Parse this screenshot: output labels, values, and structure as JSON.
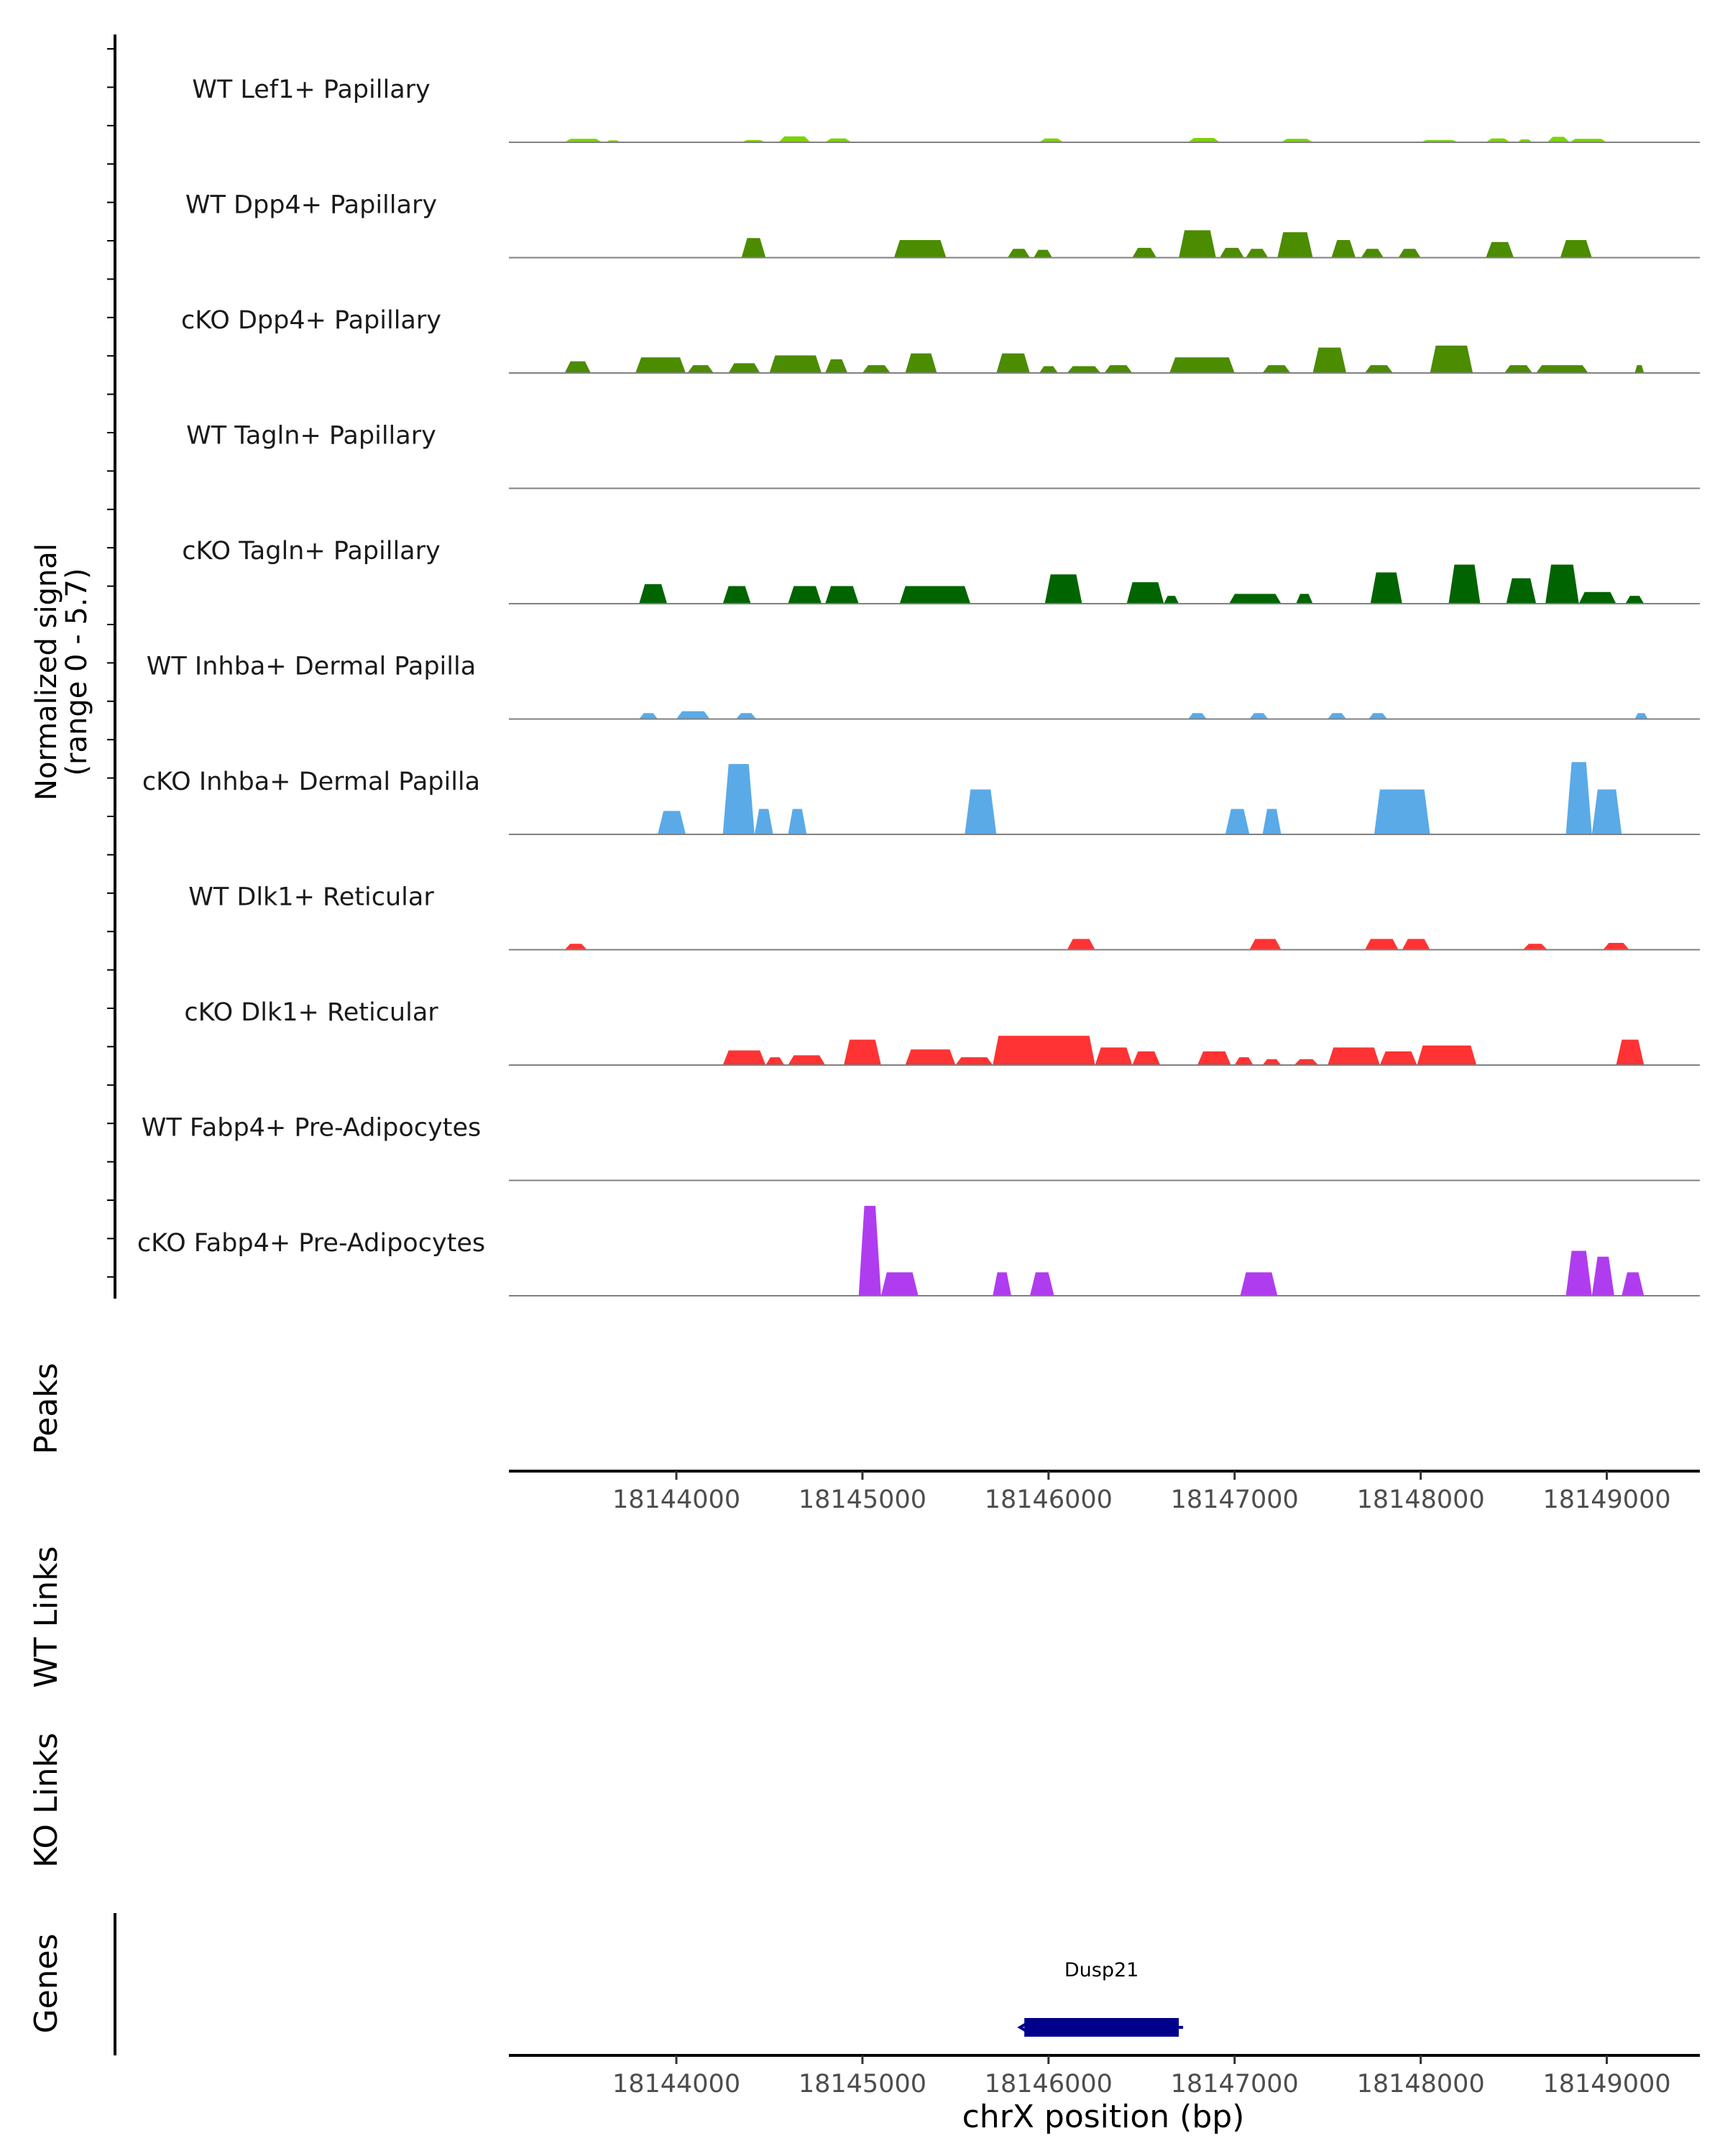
{
  "chart_data": {
    "type": "area",
    "title": "",
    "xlabel": "chrX position (bp)",
    "ylabel_main": "Normalized signal",
    "ylabel_sub": "(range 0 - 5.7)",
    "ylim": [
      0,
      5.7
    ],
    "xlim": [
      18143100,
      18149500
    ],
    "xticks": [
      18144000,
      18145000,
      18146000,
      18147000,
      18148000,
      18149000
    ],
    "xtick_labels": [
      "18144000",
      "18145000",
      "18146000",
      "18147000",
      "18148000",
      "18149000"
    ],
    "panel_labels": {
      "peaks": "Peaks",
      "wt_links": "WT Links",
      "ko_links": "KO Links",
      "genes": "Genes"
    },
    "tracks": [
      {
        "name": "WT Lef1+ Papillary",
        "color": "#7dd20a",
        "peaks": [
          [
            18143400,
            18143600,
            0.18
          ],
          [
            18143620,
            18143700,
            0.1
          ],
          [
            18144350,
            18144480,
            0.12
          ],
          [
            18144550,
            18144720,
            0.3
          ],
          [
            18144800,
            18144940,
            0.2
          ],
          [
            18145950,
            18146080,
            0.2
          ],
          [
            18146750,
            18146920,
            0.22
          ],
          [
            18147250,
            18147420,
            0.18
          ],
          [
            18148000,
            18148200,
            0.12
          ],
          [
            18148350,
            18148480,
            0.2
          ],
          [
            18148520,
            18148600,
            0.15
          ],
          [
            18148680,
            18148800,
            0.28
          ],
          [
            18148800,
            18149000,
            0.18
          ]
        ]
      },
      {
        "name": "WT Dpp4+ Papillary",
        "color": "#4b8c00",
        "peaks": [
          [
            18144350,
            18144480,
            1.0
          ],
          [
            18145170,
            18145450,
            0.9
          ],
          [
            18145780,
            18145900,
            0.45
          ],
          [
            18145920,
            18146020,
            0.4
          ],
          [
            18146450,
            18146580,
            0.5
          ],
          [
            18146700,
            18146900,
            1.4
          ],
          [
            18146920,
            18147050,
            0.5
          ],
          [
            18147060,
            18147180,
            0.45
          ],
          [
            18147230,
            18147420,
            1.3
          ],
          [
            18147520,
            18147650,
            0.9
          ],
          [
            18147680,
            18147800,
            0.45
          ],
          [
            18147880,
            18148000,
            0.45
          ],
          [
            18148350,
            18148500,
            0.8
          ],
          [
            18148750,
            18148920,
            0.9
          ]
        ]
      },
      {
        "name": "cKO Dpp4+ Papillary",
        "color": "#4b8c00",
        "peaks": [
          [
            18143400,
            18143540,
            0.6
          ],
          [
            18143780,
            18144050,
            0.8
          ],
          [
            18144060,
            18144200,
            0.4
          ],
          [
            18144280,
            18144450,
            0.5
          ],
          [
            18144500,
            18144780,
            0.9
          ],
          [
            18144800,
            18144920,
            0.7
          ],
          [
            18145000,
            18145150,
            0.4
          ],
          [
            18145230,
            18145400,
            1.0
          ],
          [
            18145720,
            18145900,
            1.0
          ],
          [
            18145950,
            18146050,
            0.35
          ],
          [
            18146100,
            18146280,
            0.35
          ],
          [
            18146300,
            18146450,
            0.4
          ],
          [
            18146650,
            18147000,
            0.8
          ],
          [
            18147150,
            18147300,
            0.4
          ],
          [
            18147420,
            18147600,
            1.3
          ],
          [
            18147700,
            18147850,
            0.4
          ],
          [
            18148050,
            18148280,
            1.4
          ],
          [
            18148450,
            18148600,
            0.4
          ],
          [
            18148620,
            18148900,
            0.4
          ],
          [
            18149150,
            18149200,
            0.4
          ]
        ]
      },
      {
        "name": "WT Tagln+ Papillary",
        "color": "#006400",
        "peaks": []
      },
      {
        "name": "cKO Tagln+ Papillary",
        "color": "#006400",
        "peaks": [
          [
            18143800,
            18143950,
            1.0
          ],
          [
            18144250,
            18144400,
            0.9
          ],
          [
            18144600,
            18144780,
            0.9
          ],
          [
            18144800,
            18144980,
            0.9
          ],
          [
            18145200,
            18145580,
            0.9
          ],
          [
            18145980,
            18146180,
            1.5
          ],
          [
            18146420,
            18146620,
            1.1
          ],
          [
            18146620,
            18146700,
            0.4
          ],
          [
            18146970,
            18147250,
            0.5
          ],
          [
            18147330,
            18147420,
            0.5
          ],
          [
            18147730,
            18147900,
            1.6
          ],
          [
            18148150,
            18148320,
            2.0
          ],
          [
            18148460,
            18148620,
            1.3
          ],
          [
            18148670,
            18148850,
            2.0
          ],
          [
            18148850,
            18149050,
            0.6
          ],
          [
            18149100,
            18149200,
            0.4
          ]
        ]
      },
      {
        "name": "WT Inhba+ Dermal Papilla",
        "color": "#5aaae8",
        "peaks": [
          [
            18143800,
            18143900,
            0.3
          ],
          [
            18144000,
            18144180,
            0.4
          ],
          [
            18144320,
            18144430,
            0.3
          ],
          [
            18146750,
            18146850,
            0.3
          ],
          [
            18147080,
            18147180,
            0.3
          ],
          [
            18147500,
            18147600,
            0.3
          ],
          [
            18147720,
            18147820,
            0.3
          ],
          [
            18149150,
            18149220,
            0.3
          ]
        ]
      },
      {
        "name": "cKO Inhba+ Dermal Papilla",
        "color": "#5aaae8",
        "peaks": [
          [
            18143900,
            18144050,
            1.2
          ],
          [
            18144250,
            18144420,
            3.6
          ],
          [
            18144420,
            18144520,
            1.3
          ],
          [
            18144600,
            18144700,
            1.3
          ],
          [
            18145550,
            18145720,
            2.3
          ],
          [
            18146950,
            18147080,
            1.3
          ],
          [
            18147150,
            18147250,
            1.3
          ],
          [
            18147750,
            18148050,
            2.3
          ],
          [
            18148780,
            18148920,
            3.7
          ],
          [
            18148920,
            18149080,
            2.3
          ]
        ]
      },
      {
        "name": "WT Dlk1+ Reticular",
        "color": "#ff3333",
        "peaks": [
          [
            18143400,
            18143520,
            0.3
          ],
          [
            18146100,
            18146250,
            0.55
          ],
          [
            18147080,
            18147250,
            0.55
          ],
          [
            18147700,
            18147880,
            0.55
          ],
          [
            18147900,
            18148050,
            0.55
          ],
          [
            18148550,
            18148680,
            0.3
          ],
          [
            18148980,
            18149120,
            0.35
          ]
        ]
      },
      {
        "name": "cKO Dlk1+ Reticular",
        "color": "#ff3333",
        "peaks": [
          [
            18144250,
            18144480,
            0.75
          ],
          [
            18144480,
            18144580,
            0.4
          ],
          [
            18144600,
            18144800,
            0.5
          ],
          [
            18144900,
            18145100,
            1.3
          ],
          [
            18145230,
            18145500,
            0.8
          ],
          [
            18145500,
            18145700,
            0.4
          ],
          [
            18145700,
            18146250,
            1.5
          ],
          [
            18146250,
            18146450,
            0.9
          ],
          [
            18146450,
            18146600,
            0.7
          ],
          [
            18146800,
            18146980,
            0.7
          ],
          [
            18147000,
            18147100,
            0.4
          ],
          [
            18147150,
            18147250,
            0.3
          ],
          [
            18147320,
            18147450,
            0.3
          ],
          [
            18147500,
            18147780,
            0.9
          ],
          [
            18147780,
            18147980,
            0.7
          ],
          [
            18147980,
            18148300,
            1.0
          ],
          [
            18149050,
            18149200,
            1.3
          ]
        ]
      },
      {
        "name": "WT Fabp4+ Pre-Adipocytes",
        "color": "#b03cf0",
        "peaks": []
      },
      {
        "name": "cKO Fabp4+ Pre-Adipocytes",
        "color": "#b03cf0",
        "peaks": [
          [
            18144980,
            18145100,
            4.6
          ],
          [
            18145100,
            18145300,
            1.2
          ],
          [
            18145700,
            18145800,
            1.2
          ],
          [
            18145900,
            18146030,
            1.2
          ],
          [
            18147030,
            18147230,
            1.2
          ],
          [
            18148780,
            18148920,
            2.3
          ],
          [
            18148920,
            18149040,
            2.0
          ],
          [
            18149080,
            18149200,
            1.2
          ]
        ]
      }
    ],
    "gene": {
      "name": "Dusp21",
      "start": 18145870,
      "end": 18146700,
      "strand": "-",
      "color": "#00008b"
    }
  }
}
